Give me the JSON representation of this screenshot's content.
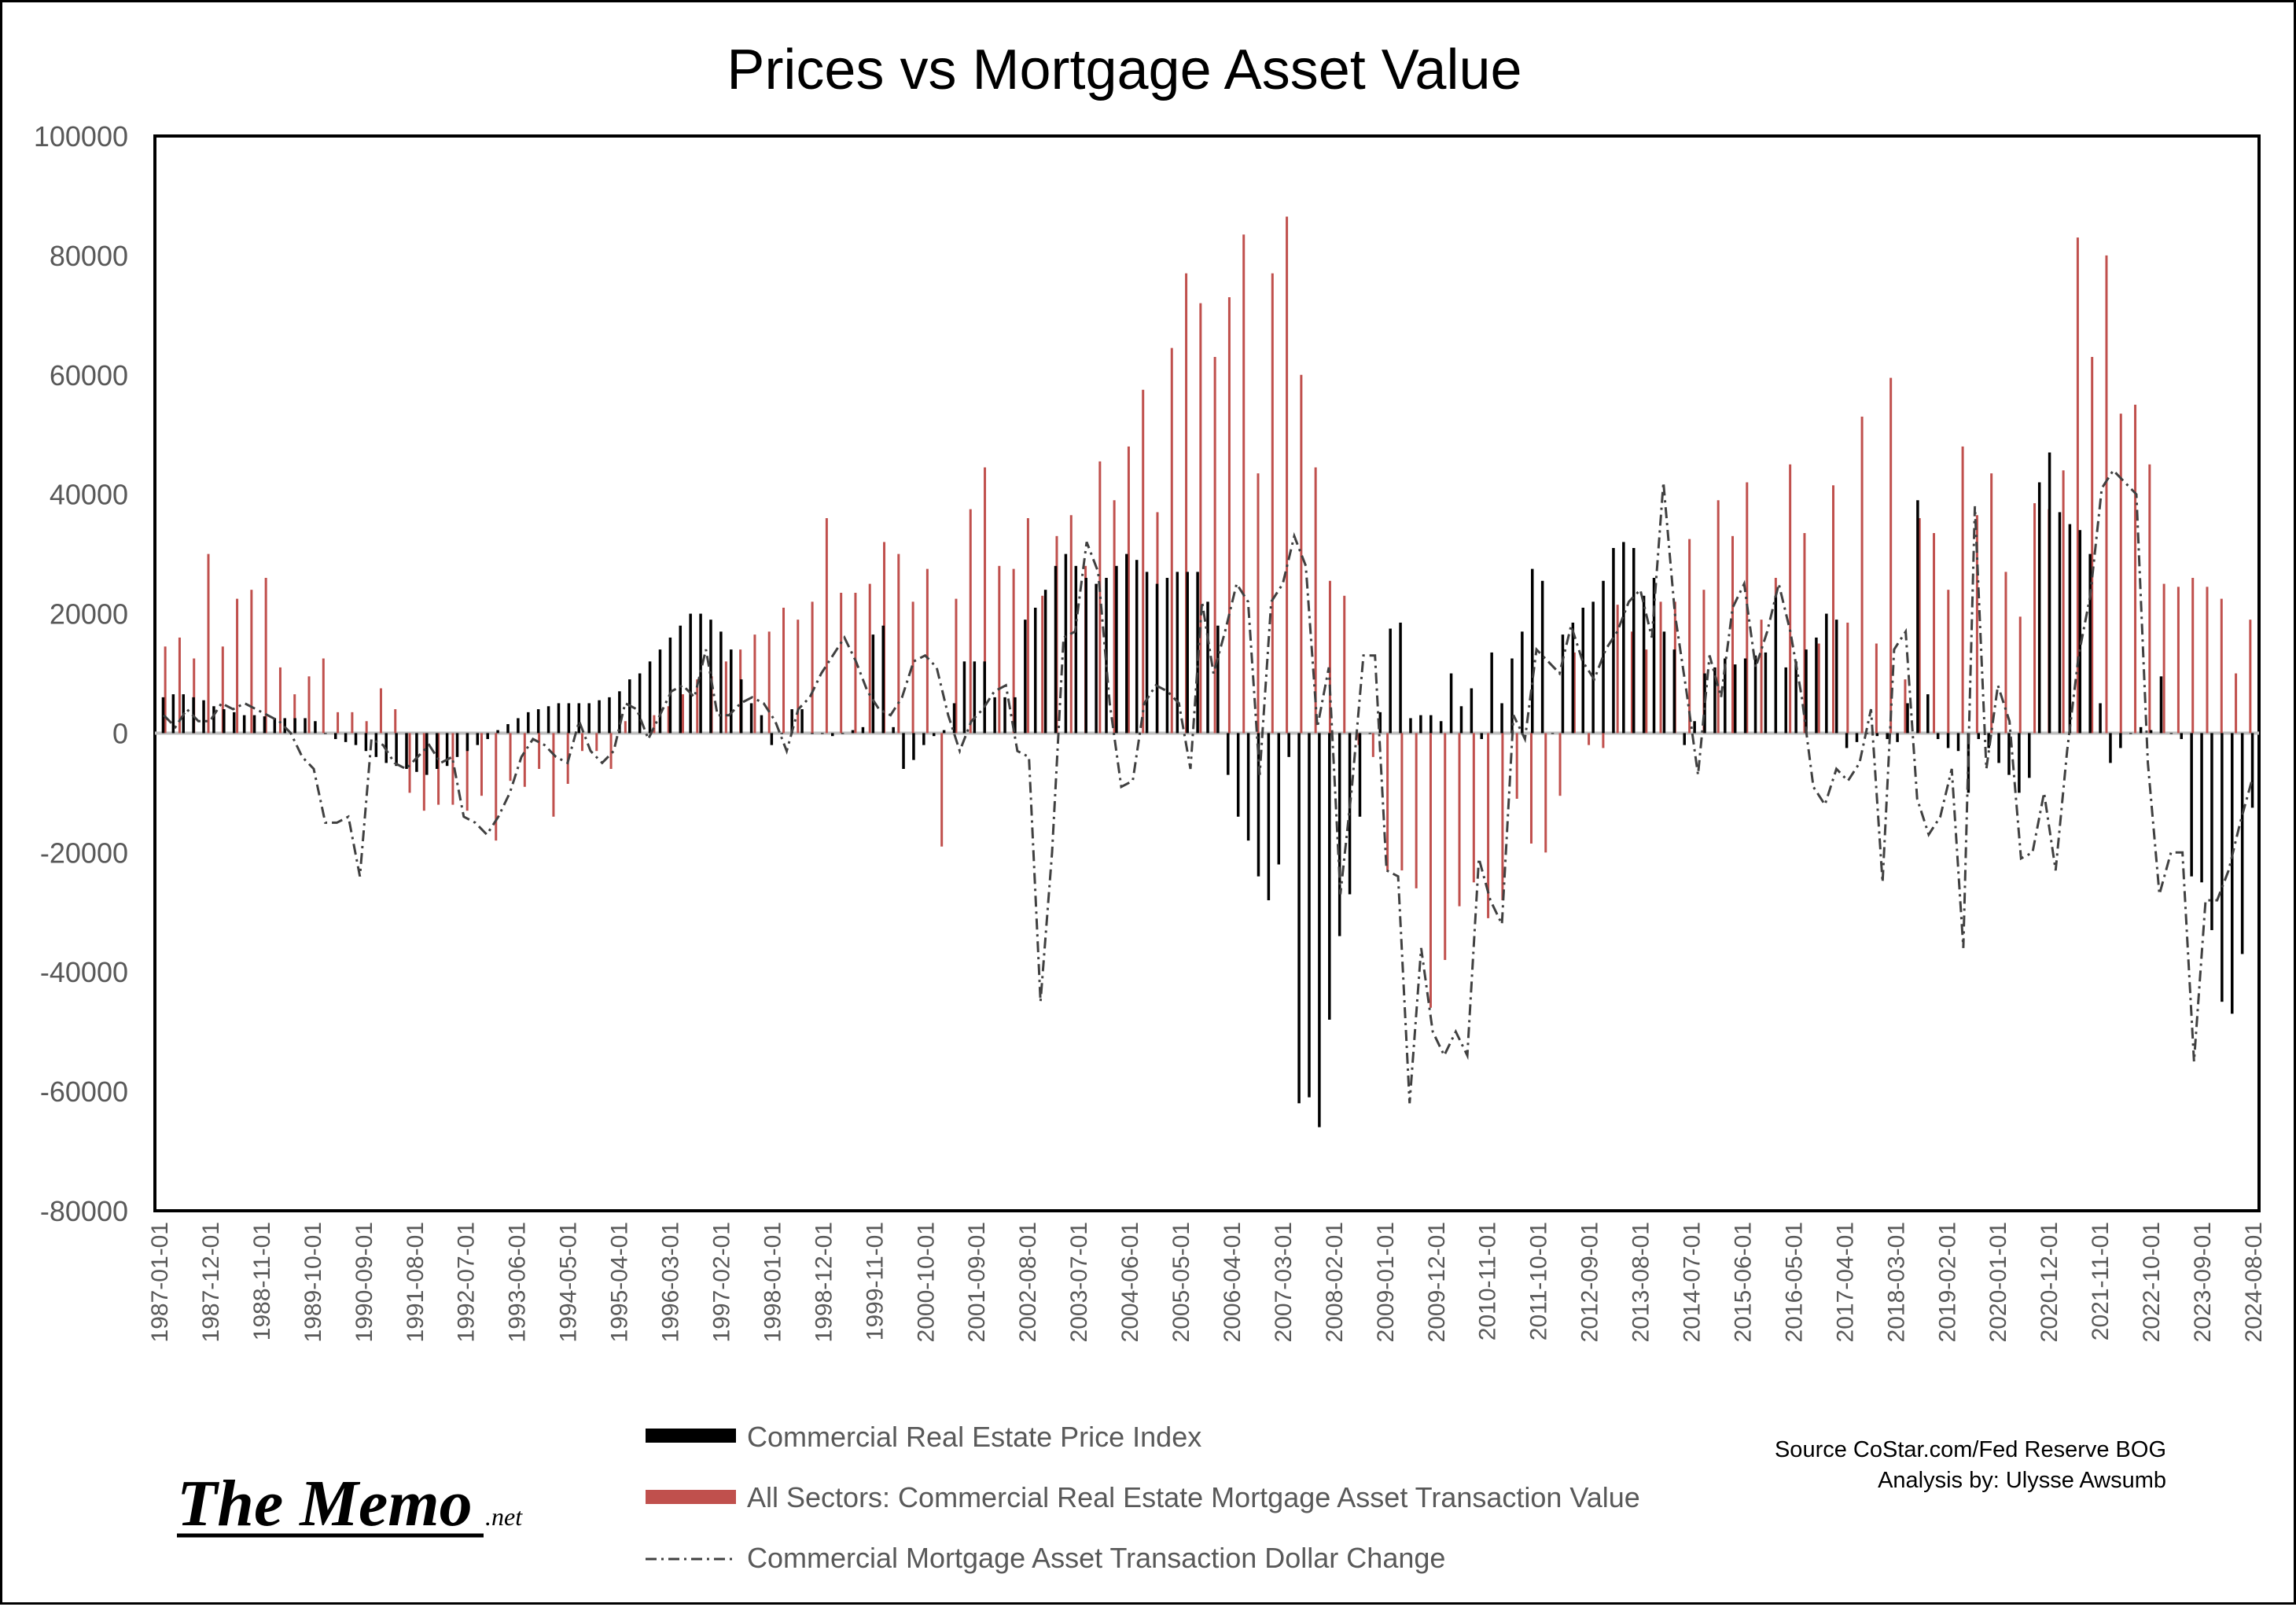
{
  "chart_data": {
    "type": "bar",
    "title": "Prices vs Mortgage Asset Value",
    "xlabel": "",
    "ylabel": "",
    "ylim": [
      -80000,
      100000
    ],
    "yticks": [
      100000,
      80000,
      60000,
      40000,
      20000,
      0,
      -20000,
      -40000,
      -60000,
      -80000
    ],
    "x_tick_labels": [
      "1987-01-01",
      "1987-12-01",
      "1988-11-01",
      "1989-10-01",
      "1990-09-01",
      "1991-08-01",
      "1992-07-01",
      "1993-06-01",
      "1994-05-01",
      "1995-04-01",
      "1996-03-01",
      "1997-02-01",
      "1998-01-01",
      "1998-12-01",
      "1999-11-01",
      "2000-10-01",
      "2001-09-01",
      "2002-08-01",
      "2003-07-01",
      "2004-06-01",
      "2005-05-01",
      "2006-04-01",
      "2007-03-01",
      "2008-02-01",
      "2009-01-01",
      "2009-12-01",
      "2010-11-01",
      "2011-10-01",
      "2012-09-01",
      "2013-08-01",
      "2014-07-01",
      "2015-06-01",
      "2016-05-01",
      "2017-04-01",
      "2018-03-01",
      "2019-02-01",
      "2020-01-01",
      "2020-12-01",
      "2021-11-01",
      "2022-10-01",
      "2023-09-01",
      "2024-08-01"
    ],
    "grid": false,
    "legend_position": "bottom",
    "colors": {
      "price_index": "#000000",
      "mortgage_value": "#c0504d",
      "dollar_change": "#404040",
      "zero_line": "#bfbfbf"
    },
    "series": [
      {
        "name": "Commercial Real Estate Price Index",
        "type": "bar",
        "sampling": "quarterly",
        "values": [
          6000,
          6500,
          6500,
          6000,
          5500,
          4500,
          4000,
          3500,
          3000,
          3000,
          2800,
          2500,
          2500,
          2500,
          2500,
          2000,
          0,
          -1000,
          -1500,
          -2000,
          -3000,
          -4000,
          -5000,
          -5500,
          -6000,
          -6500,
          -7000,
          -6000,
          -5500,
          -4000,
          -3000,
          -2000,
          -1000,
          500,
          1500,
          2500,
          3500,
          4000,
          4500,
          5000,
          5000,
          5000,
          5000,
          5500,
          6000,
          7000,
          9000,
          10000,
          12000,
          14000,
          16000,
          18000,
          20000,
          20000,
          19000,
          17000,
          14000,
          9000,
          5000,
          3000,
          -2000,
          0,
          4000,
          4000,
          0,
          0,
          -500,
          0,
          500,
          1000,
          16500,
          18000,
          1000,
          -6000,
          -4500,
          -2000,
          -500,
          500,
          5000,
          12000,
          12000,
          12000,
          6000,
          6000,
          6000,
          19000,
          21000,
          24000,
          28000,
          30000,
          28000,
          26000,
          25000,
          26000,
          28000,
          30000,
          29000,
          27000,
          25000,
          26000,
          27000,
          27000,
          27000,
          22000,
          18000,
          -7000,
          -14000,
          -18000,
          -24000,
          -28000,
          -22000,
          -4000,
          -62000,
          -61000,
          -66000,
          -48000,
          -34000,
          -27000,
          -14000,
          0,
          3500,
          17500,
          18500,
          2500,
          3000,
          3000,
          2000,
          10000,
          4500,
          7500,
          -1000,
          13500,
          5000,
          12500,
          17000,
          27500,
          25500,
          0,
          16500,
          18500,
          21000,
          22000,
          25500,
          31000,
          32000,
          31000,
          23000,
          26000,
          17000,
          14000,
          -2000,
          2000,
          10000,
          11000,
          12500,
          11500,
          12500,
          13000,
          13500,
          23000,
          11000,
          12000,
          14000,
          16000,
          20000,
          19000,
          -2500,
          -1500,
          0,
          -500,
          -1000,
          -1500,
          5000,
          39000,
          6500,
          -1000,
          -2500,
          -3000,
          -10000,
          -1000,
          -2500,
          -5000,
          -7000,
          -10000,
          -7500,
          42000,
          47000,
          37000,
          35000,
          34000,
          30000,
          5000,
          -5000,
          -2500,
          0,
          1000,
          500,
          9500,
          0,
          -1000,
          -24000,
          -25000,
          -33000,
          -45000,
          -47000,
          -37000,
          -12500
        ]
      },
      {
        "name": "All Sectors: Commercial Real Estate Mortgage Asset Transaction Value",
        "type": "bar",
        "sampling": "quarterly",
        "values": [
          14500,
          16000,
          12500,
          30000,
          14500,
          22500,
          24000,
          26000,
          11000,
          6500,
          9500,
          12500,
          3500,
          3500,
          2000,
          7500,
          4000,
          -10000,
          -13000,
          -12000,
          -12000,
          -13000,
          -10500,
          -18000,
          -8000,
          -9000,
          -6000,
          -14000,
          -8500,
          -3000,
          -3000,
          -6000,
          2000,
          2500,
          3000,
          4500,
          6500,
          9000,
          9500,
          12000,
          14000,
          16500,
          17000,
          21000,
          19000,
          22000,
          36000,
          23500,
          23500,
          25000,
          32000,
          30000,
          22000,
          27500,
          -19000,
          22500,
          37500,
          44500,
          28000,
          27500,
          36000,
          23000,
          33000,
          36500,
          28000,
          45500,
          39000,
          48000,
          57500,
          37000,
          64500,
          77000,
          72000,
          63000,
          73000,
          83500,
          43500,
          77000,
          86500,
          60000,
          44500,
          25500,
          23000,
          -2000,
          -4000,
          -23000,
          -23000,
          -26000,
          -46000,
          -38000,
          -29000,
          -25000,
          -31000,
          -28000,
          -11000,
          -18500,
          -20000,
          -10500,
          13500,
          -2000,
          -2500,
          21500,
          17000,
          14000,
          22000,
          22000,
          32500,
          24000,
          39000,
          33000,
          42000,
          19000,
          26000,
          45000,
          33500,
          15000,
          41500,
          18500,
          53000,
          15000,
          59500,
          9000,
          36000,
          33500,
          24000,
          48000,
          36500,
          43500,
          27000,
          19500,
          38500,
          37500,
          44000,
          83000,
          63000,
          80000,
          53500,
          55000,
          45000,
          25000,
          24500,
          26000,
          24500,
          22500,
          10000,
          19000
        ]
      },
      {
        "name": "Commercial Mortgage Asset Transaction Dollar Change",
        "type": "line",
        "sampling": "quarterly",
        "values": [
          3000,
          1000,
          4000,
          2000,
          2000,
          5000,
          4000,
          5000,
          4000,
          3000,
          2000,
          0,
          -4000,
          -6000,
          -15000,
          -15000,
          -14000,
          -24000,
          -1000,
          -2000,
          -5000,
          -6000,
          -4000,
          -2000,
          -5000,
          -4000,
          -14000,
          -15000,
          -17000,
          -14000,
          -10000,
          -4000,
          -1000,
          -2000,
          -4000,
          -5000,
          2000,
          -3000,
          -5000,
          -3000,
          5000,
          4000,
          -1000,
          3000,
          7000,
          8000,
          6000,
          14000,
          3000,
          3000,
          5000,
          6000,
          5000,
          2000,
          -3000,
          4000,
          6000,
          10000,
          13000,
          16000,
          12000,
          7000,
          4000,
          3000,
          6000,
          12000,
          13000,
          11000,
          3000,
          -3000,
          2000,
          4000,
          7000,
          8000,
          -3000,
          -4000,
          -45000,
          -20000,
          16000,
          17000,
          32000,
          27000,
          5000,
          -9000,
          -8000,
          5000,
          8000,
          7000,
          5000,
          -6000,
          22000,
          10000,
          17000,
          25000,
          22000,
          -7000,
          22000,
          25000,
          33000,
          28000,
          1000,
          11000,
          -27000,
          -9000,
          13000,
          13000,
          -23000,
          -24000,
          -62000,
          -36000,
          -50000,
          -54000,
          -50000,
          -54000,
          -21000,
          -28000,
          -32000,
          3000,
          -1000,
          14000,
          12000,
          10000,
          18000,
          12000,
          9000,
          14000,
          17000,
          22000,
          24000,
          16000,
          42000,
          20000,
          7000,
          -7000,
          13000,
          6000,
          21000,
          25000,
          11000,
          17000,
          25000,
          17000,
          6000,
          -9000,
          -12000,
          -6000,
          -8000,
          -5000,
          4000,
          -25000,
          14000,
          17000,
          -11000,
          -17000,
          -14000,
          -6000,
          -36000,
          38000,
          -6000,
          8000,
          2000,
          -21000,
          -20000,
          -10000,
          -23000,
          -3000,
          13000,
          23000,
          41000,
          44000,
          42000,
          40000,
          -5000,
          -27000,
          -20000,
          -20000,
          -55000,
          -28000,
          -28000,
          -23000,
          -15000,
          -8000
        ]
      }
    ],
    "source_line1": "Source CoStar.com/Fed Reserve BOG",
    "source_line2": "Analysis by: Ulysse Awsumb",
    "brand": "The Memo",
    "brand_suffix": ".net"
  }
}
